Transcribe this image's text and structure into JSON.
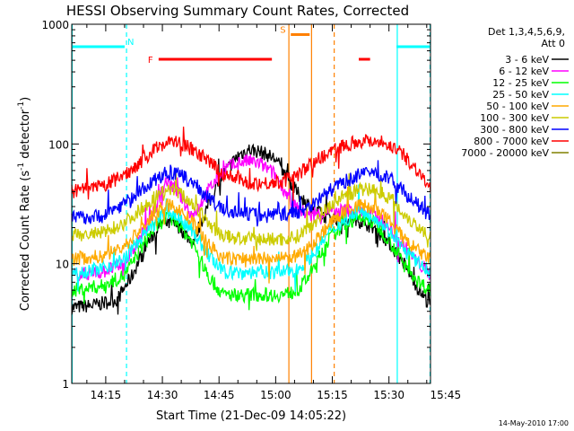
{
  "chart_data": {
    "type": "line",
    "title": "HESSI Observing Summary Count Rates, Corrected",
    "xlabel": "Start Time (21-Dec-09 14:05:22)",
    "ylabel_main": "Corrected Count Rate (s",
    "ylabel_sup1": "-1",
    "ylabel_mid": " detector",
    "ylabel_sup2": "-1",
    "ylabel_end": ")",
    "y_scale": "log",
    "ylim": [
      1,
      1000
    ],
    "xlim_minutes": [
      6.0,
      101.0
    ],
    "x_ticks": [
      {
        "t": 15,
        "label": "14:15"
      },
      {
        "t": 30,
        "label": "14:30"
      },
      {
        "t": 45,
        "label": "14:45"
      },
      {
        "t": 60,
        "label": "15:00"
      },
      {
        "t": 75,
        "label": "15:15"
      },
      {
        "t": 90,
        "label": "15:30"
      },
      {
        "t": 105,
        "label": "15:45"
      }
    ],
    "y_ticks": [
      {
        "v": 1,
        "label": "1"
      },
      {
        "v": 10,
        "label": "10"
      },
      {
        "v": 100,
        "label": "100"
      },
      {
        "v": 1000,
        "label": "1000"
      }
    ],
    "legend_header": [
      "Det 1,3,4,5,6,9,",
      "Att 0"
    ],
    "legend_position": "top-right",
    "series": [
      {
        "name": "3 - 6 keV",
        "color": "#000000",
        "points": [
          [
            6,
            4.3
          ],
          [
            12,
            4.5
          ],
          [
            18,
            5
          ],
          [
            22,
            8
          ],
          [
            26,
            15
          ],
          [
            30,
            22
          ],
          [
            34,
            21
          ],
          [
            38,
            15
          ],
          [
            42,
            30
          ],
          [
            46,
            55
          ],
          [
            50,
            80
          ],
          [
            53,
            90
          ],
          [
            56,
            86
          ],
          [
            60,
            75
          ],
          [
            63,
            52
          ],
          [
            66,
            38
          ],
          [
            70,
            28
          ],
          [
            74,
            24
          ],
          [
            78,
            24
          ],
          [
            82,
            23
          ],
          [
            86,
            20
          ],
          [
            90,
            15
          ],
          [
            94,
            10
          ],
          [
            98,
            6
          ],
          [
            101,
            4.5
          ]
        ]
      },
      {
        "name": "6 - 12 keV",
        "color": "#ff00ff",
        "points": [
          [
            6,
            8
          ],
          [
            14,
            8.5
          ],
          [
            20,
            10
          ],
          [
            24,
            16
          ],
          [
            28,
            28
          ],
          [
            31,
            50
          ],
          [
            34,
            40
          ],
          [
            38,
            25
          ],
          [
            42,
            40
          ],
          [
            46,
            60
          ],
          [
            50,
            70
          ],
          [
            53,
            72
          ],
          [
            56,
            68
          ],
          [
            60,
            55
          ],
          [
            63,
            38
          ],
          [
            66,
            28
          ],
          [
            70,
            25
          ],
          [
            74,
            27
          ],
          [
            78,
            28
          ],
          [
            82,
            28
          ],
          [
            86,
            26
          ],
          [
            90,
            20
          ],
          [
            94,
            14
          ],
          [
            98,
            10
          ],
          [
            101,
            8
          ]
        ]
      },
      {
        "name": "12 - 25 keV",
        "color": "#00ff00",
        "points": [
          [
            6,
            6
          ],
          [
            14,
            6.5
          ],
          [
            20,
            8
          ],
          [
            24,
            13
          ],
          [
            28,
            20
          ],
          [
            31,
            24
          ],
          [
            34,
            22
          ],
          [
            38,
            15
          ],
          [
            42,
            8
          ],
          [
            46,
            5.5
          ],
          [
            52,
            5.5
          ],
          [
            58,
            5.5
          ],
          [
            62,
            5.5
          ],
          [
            66,
            6
          ],
          [
            70,
            9
          ],
          [
            74,
            16
          ],
          [
            78,
            21
          ],
          [
            82,
            24
          ],
          [
            86,
            22
          ],
          [
            90,
            16
          ],
          [
            94,
            10
          ],
          [
            98,
            7
          ],
          [
            101,
            6
          ]
        ]
      },
      {
        "name": "25 - 50 keV",
        "color": "#00ffff",
        "points": [
          [
            6,
            8.5
          ],
          [
            14,
            9
          ],
          [
            20,
            11
          ],
          [
            24,
            16
          ],
          [
            28,
            22
          ],
          [
            31,
            27
          ],
          [
            34,
            25
          ],
          [
            38,
            19
          ],
          [
            42,
            12
          ],
          [
            46,
            8.5
          ],
          [
            52,
            8.5
          ],
          [
            58,
            8.5
          ],
          [
            62,
            8.5
          ],
          [
            66,
            9
          ],
          [
            70,
            12
          ],
          [
            74,
            18
          ],
          [
            78,
            23
          ],
          [
            82,
            27
          ],
          [
            86,
            25
          ],
          [
            90,
            19
          ],
          [
            94,
            13
          ],
          [
            98,
            10
          ],
          [
            101,
            8.5
          ]
        ]
      },
      {
        "name": "50 - 100 keV",
        "color": "#ffaa00",
        "points": [
          [
            6,
            11
          ],
          [
            14,
            11.5
          ],
          [
            20,
            14
          ],
          [
            24,
            19
          ],
          [
            28,
            26
          ],
          [
            31,
            31
          ],
          [
            34,
            29
          ],
          [
            38,
            22
          ],
          [
            42,
            15
          ],
          [
            46,
            11
          ],
          [
            52,
            11
          ],
          [
            58,
            11
          ],
          [
            62,
            11
          ],
          [
            66,
            11.5
          ],
          [
            70,
            15
          ],
          [
            74,
            21
          ],
          [
            78,
            27
          ],
          [
            82,
            31
          ],
          [
            86,
            29
          ],
          [
            90,
            23
          ],
          [
            94,
            16
          ],
          [
            98,
            12.5
          ],
          [
            101,
            11
          ]
        ]
      },
      {
        "name": "100 - 300 keV",
        "color": "#cccc00",
        "points": [
          [
            6,
            17
          ],
          [
            14,
            18
          ],
          [
            20,
            22
          ],
          [
            24,
            28
          ],
          [
            28,
            36
          ],
          [
            31,
            42
          ],
          [
            34,
            40
          ],
          [
            38,
            32
          ],
          [
            42,
            22
          ],
          [
            46,
            17
          ],
          [
            52,
            16
          ],
          [
            58,
            16
          ],
          [
            62,
            16
          ],
          [
            66,
            17
          ],
          [
            70,
            22
          ],
          [
            74,
            30
          ],
          [
            78,
            37
          ],
          [
            82,
            41
          ],
          [
            86,
            42
          ],
          [
            90,
            36
          ],
          [
            94,
            26
          ],
          [
            98,
            20
          ],
          [
            101,
            17
          ]
        ]
      },
      {
        "name": "300 - 800 keV",
        "color": "#0000ff",
        "points": [
          [
            6,
            24
          ],
          [
            14,
            25
          ],
          [
            20,
            32
          ],
          [
            24,
            40
          ],
          [
            28,
            50
          ],
          [
            31,
            57
          ],
          [
            34,
            56
          ],
          [
            38,
            48
          ],
          [
            42,
            36
          ],
          [
            46,
            28
          ],
          [
            52,
            26
          ],
          [
            58,
            26
          ],
          [
            62,
            26
          ],
          [
            66,
            27
          ],
          [
            70,
            32
          ],
          [
            74,
            40
          ],
          [
            78,
            48
          ],
          [
            82,
            55
          ],
          [
            86,
            58
          ],
          [
            90,
            52
          ],
          [
            94,
            40
          ],
          [
            98,
            30
          ],
          [
            101,
            25
          ]
        ]
      },
      {
        "name": "800 - 7000 keV",
        "color": "#ff0000",
        "points": [
          [
            6,
            40
          ],
          [
            14,
            44
          ],
          [
            20,
            55
          ],
          [
            24,
            70
          ],
          [
            28,
            90
          ],
          [
            31,
            105
          ],
          [
            34,
            103
          ],
          [
            38,
            90
          ],
          [
            42,
            72
          ],
          [
            46,
            57
          ],
          [
            50,
            50
          ],
          [
            54,
            47
          ],
          [
            58,
            47
          ],
          [
            62,
            49
          ],
          [
            66,
            56
          ],
          [
            70,
            70
          ],
          [
            74,
            85
          ],
          [
            78,
            98
          ],
          [
            82,
            105
          ],
          [
            86,
            108
          ],
          [
            90,
            100
          ],
          [
            94,
            80
          ],
          [
            98,
            58
          ],
          [
            101,
            42
          ]
        ]
      },
      {
        "name": "7000 - 20000 keV",
        "color": "#808000",
        "points": []
      }
    ],
    "flag_bars": [
      {
        "label": "N",
        "color": "#00ffff",
        "segments": [
          [
            6,
            20
          ],
          [
            92,
            101
          ]
        ],
        "level": 650
      },
      {
        "label": "F",
        "color": "#ff0000",
        "segments": [
          [
            29,
            59
          ],
          [
            82,
            85
          ]
        ],
        "level": 510
      },
      {
        "label": "S",
        "color": "#ff8000",
        "segments": [
          [
            64,
            69
          ]
        ],
        "level": 820
      }
    ],
    "vertical_lines": [
      {
        "t": 6.1,
        "color": "#00ffff",
        "style": "solid"
      },
      {
        "t": 20.5,
        "color": "#00ffff",
        "style": "dashed"
      },
      {
        "t": 63.5,
        "color": "#ff8000",
        "style": "solid"
      },
      {
        "t": 69.5,
        "color": "#ff8000",
        "style": "solid"
      },
      {
        "t": 75.5,
        "color": "#ff8000",
        "style": "dashed"
      },
      {
        "t": 92.2,
        "color": "#00ffff",
        "style": "solid"
      },
      {
        "t": 100.9,
        "color": "#00ffff",
        "style": "dashed"
      }
    ],
    "footer_date": "14-May-2010 17:00"
  }
}
